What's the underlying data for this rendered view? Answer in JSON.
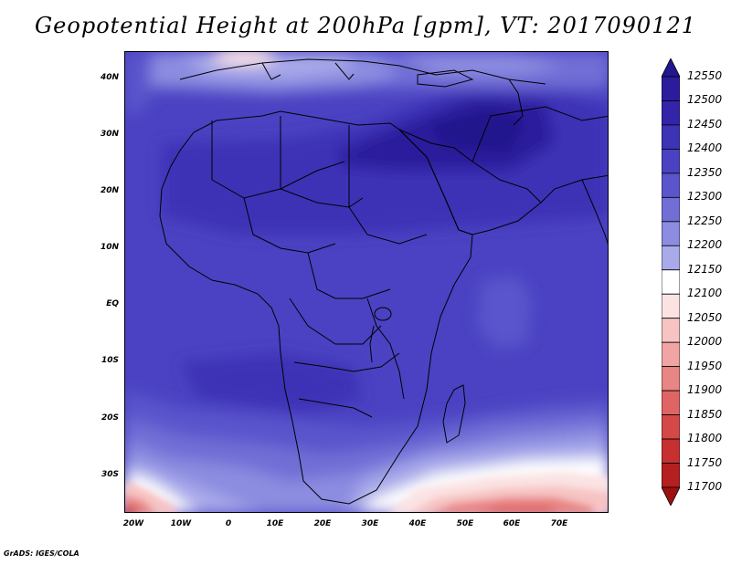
{
  "title": "Geopotential Height at 200hPa [gpm], VT: 2017090121",
  "footer": "GrADS: IGES/COLA",
  "map": {
    "lat_labels": [
      "40N",
      "30N",
      "20N",
      "10N",
      "EQ",
      "10S",
      "20S",
      "30S"
    ],
    "lon_labels": [
      "20W",
      "10W",
      "0",
      "10E",
      "20E",
      "30E",
      "40E",
      "50E",
      "60E",
      "70E"
    ],
    "lat_range": [
      -36,
      44
    ],
    "lon_range": [
      -23,
      80
    ]
  },
  "colorbar": {
    "labels": [
      "12550",
      "12500",
      "12450",
      "12400",
      "12350",
      "12300",
      "12250",
      "12200",
      "12150",
      "12100",
      "12050",
      "12000",
      "11950",
      "11900",
      "11850",
      "11800",
      "11750",
      "11700"
    ],
    "colors": [
      "#22178c",
      "#2a1c9c",
      "#3324aa",
      "#3d33b6",
      "#4a42c2",
      "#5a55cc",
      "#716ed6",
      "#8c8ce0",
      "#a9aaea",
      "#ffffff",
      "#fbe3e3",
      "#f7c3c3",
      "#f0a4a4",
      "#e88585",
      "#df6565",
      "#d44848",
      "#c73030",
      "#b51f1f",
      "#9e1010"
    ]
  }
}
